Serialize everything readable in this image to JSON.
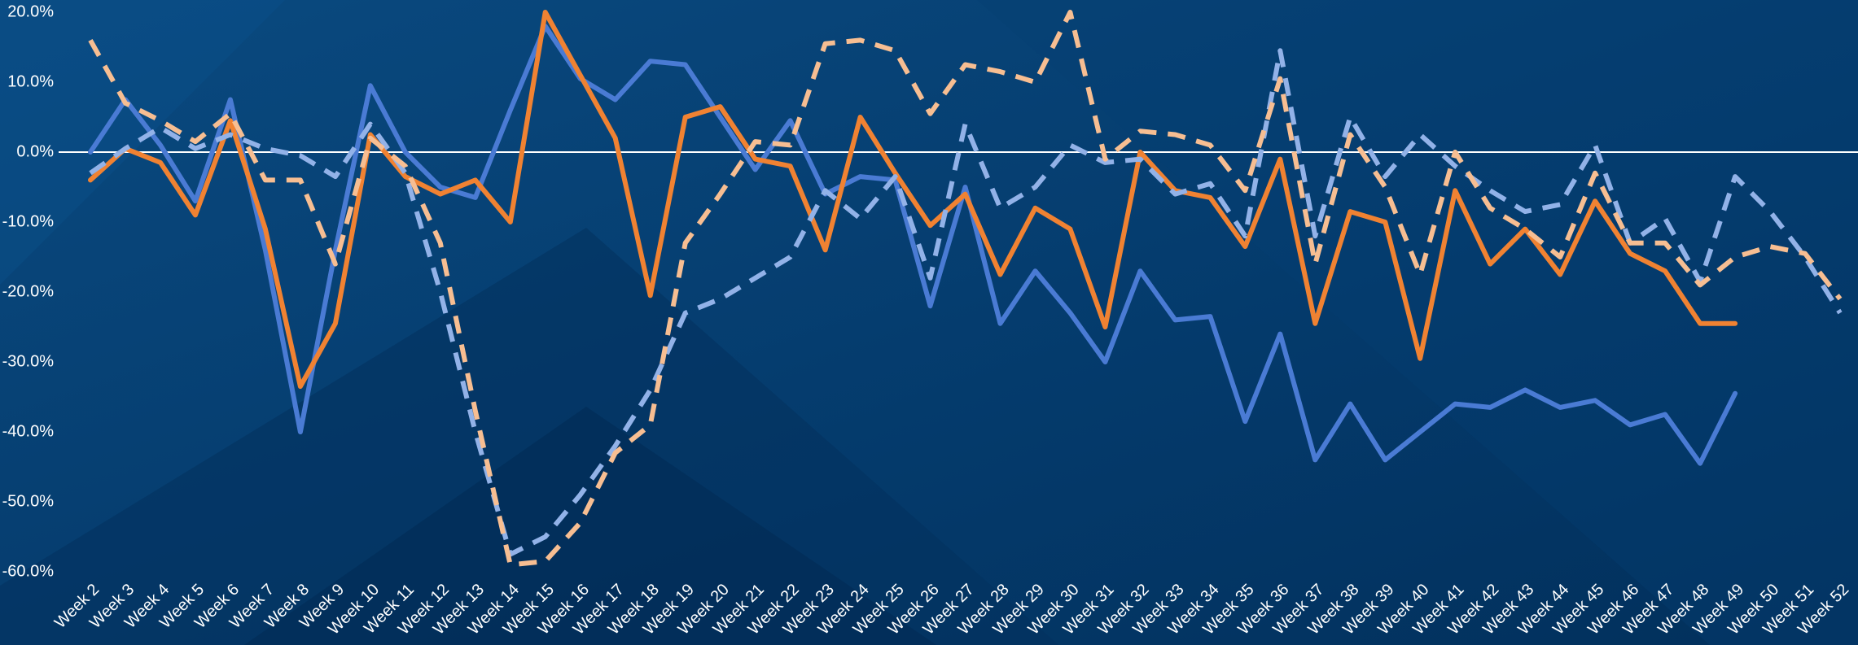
{
  "chart_data": {
    "type": "line",
    "categories": [
      "Week 2",
      "Week 3",
      "Week 4",
      "Week 5",
      "Week 6",
      "Week 7",
      "Week 8",
      "Week 9",
      "Week 10",
      "Week 11",
      "Week 12",
      "Week 13",
      "Week 14",
      "Week 15",
      "Week 16",
      "Week 17",
      "Week 18",
      "Week 19",
      "Week 20",
      "Week 21",
      "Week 22",
      "Week 23",
      "Week 24",
      "Week 25",
      "Week 26",
      "Week 27",
      "Week 28",
      "Week 29",
      "Week 30",
      "Week 31",
      "Week 32",
      "Week 33",
      "Week 34",
      "Week 35",
      "Week 36",
      "Week 37",
      "Week 38",
      "Week 39",
      "Week 40",
      "Week 41",
      "Week 42",
      "Week 43",
      "Week 44",
      "Week 45",
      "Week 46",
      "Week 47",
      "Week 48",
      "Week 49",
      "Week 50",
      "Week 51",
      "Week 52"
    ],
    "series": [
      {
        "color": "#4a7bd4",
        "dashed": false,
        "values": [
          0,
          7.5,
          1,
          -7,
          7.5,
          -14,
          -40,
          -14,
          9.5,
          0,
          -5,
          -6.5,
          6,
          18,
          10.5,
          7.5,
          13,
          12.5,
          5,
          -2.5,
          4.5,
          -6,
          -3.5,
          -4,
          -22,
          -5,
          -24.5,
          -17,
          -23,
          -30,
          -17,
          -24,
          -23.5,
          -38.5,
          -26,
          -44,
          -36,
          -44,
          -40,
          -36,
          -36.5,
          -34,
          -36.5,
          -35.5,
          -39,
          -37.5,
          -44.5,
          -34.5,
          null,
          null,
          null
        ]
      },
      {
        "color": "#f08232",
        "dashed": false,
        "values": [
          -4,
          0.5,
          -1.5,
          -9,
          4.5,
          -11,
          -33.5,
          -24.5,
          2.5,
          -3.5,
          -6,
          -4,
          -10,
          20,
          11,
          2,
          -20.5,
          5,
          6.5,
          -1,
          -2,
          -14,
          5,
          -3,
          -10.5,
          -6,
          -17.5,
          -8,
          -11,
          -25,
          0,
          -5.5,
          -6.5,
          -13.5,
          -1,
          -24.5,
          -8.5,
          -10,
          -29.5,
          -5.5,
          -16,
          -11,
          -17.5,
          -7,
          -14.5,
          -17,
          -24.5,
          -24.5,
          null,
          null,
          null
        ]
      },
      {
        "color": "#92b2e8",
        "dashed": true,
        "values": [
          -3,
          0.5,
          3.5,
          0.5,
          2.5,
          0.5,
          -0.5,
          -3.5,
          4,
          -3,
          -20,
          -40,
          -57.5,
          -55,
          -49,
          -42,
          -34,
          -23,
          -21,
          -18,
          -15,
          -5.5,
          -9.5,
          -3.5,
          -18,
          4,
          -8,
          -5,
          1,
          -1.5,
          -1,
          -6,
          -4.5,
          -12,
          14.5,
          -12,
          5,
          -3.5,
          2.5,
          -2,
          -5.5,
          -8.5,
          -7.5,
          1,
          -13,
          -9.5,
          -18.5,
          -3.5,
          -8.5,
          -15,
          -23
        ]
      },
      {
        "color": "#f7be92",
        "dashed": true,
        "values": [
          16,
          7,
          4.5,
          1.5,
          5.5,
          -4,
          -4,
          -16,
          2,
          -2,
          -13,
          -37,
          -59,
          -58.5,
          -53,
          -43,
          -39,
          -13,
          -6,
          1.5,
          1,
          15.5,
          16,
          14.5,
          5.5,
          12.5,
          11.5,
          10,
          20,
          -1,
          3,
          2.5,
          1,
          -5.5,
          10.5,
          -16,
          2.5,
          -5,
          -17.5,
          0,
          -8,
          -11,
          -15,
          -3,
          -13,
          -13,
          -19,
          -15,
          -13.5,
          -14.5,
          -21
        ]
      }
    ],
    "ylim": [
      -60,
      20
    ],
    "yticks": [
      {
        "value": -60,
        "label": "-60.0%"
      },
      {
        "value": -50,
        "label": "-50.0%"
      },
      {
        "value": -40,
        "label": "-40.0%"
      },
      {
        "value": -30,
        "label": "-30.0%"
      },
      {
        "value": -20,
        "label": "-20.0%"
      },
      {
        "value": -10,
        "label": "-10.0%"
      },
      {
        "value": 0,
        "label": "0.0%"
      },
      {
        "value": 10,
        "label": "10.0%"
      },
      {
        "value": 20,
        "label": "20.0%"
      }
    ],
    "grid": false
  }
}
